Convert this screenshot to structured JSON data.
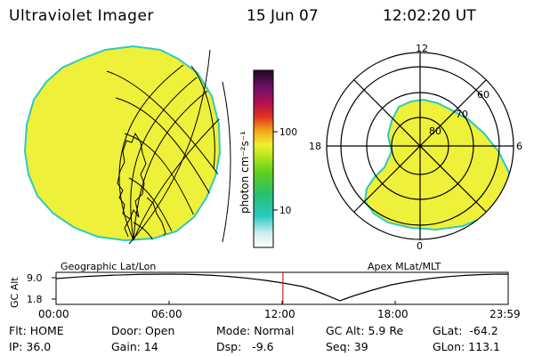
{
  "header": {
    "title": "Ultraviolet Imager",
    "date": "15 Jun 07",
    "time": "12:02:20 UT"
  },
  "geo_panel": {
    "label": "Geographic Lat/Lon"
  },
  "polar_panel": {
    "label": "Apex MLat/MLT",
    "mlt_labels": [
      "12",
      "18",
      "6",
      "0"
    ],
    "lat_labels": [
      "80",
      "70",
      "60"
    ]
  },
  "colorbar": {
    "unit": "photon cm⁻²s⁻¹",
    "ticks": [
      "100",
      "10"
    ]
  },
  "altitude_plot": {
    "axis_label": "GC Alt",
    "y_ticks": [
      "9.0",
      "1.8"
    ],
    "x_ticks": [
      "00:00",
      "06:00",
      "12:00",
      "18:00",
      "23:59"
    ],
    "current_time_hours": 12.04
  },
  "footer": {
    "flt": "Flt: HOME",
    "door": "Door: Open",
    "mode": "Mode: Normal",
    "gcalt": "GC Alt: 5.9 Re",
    "glat": "GLat:  -64.2",
    "ip": "IP: 36.0",
    "gain": "Gain: 14",
    "dsp": "Dsp:   -9.6",
    "seq": "Seq: 39",
    "glon": "GLon: 113.1"
  },
  "colors": {
    "image_fill": "#eef03a",
    "edge": "#2ec9c0",
    "current_time_marker": "#cc2222"
  }
}
